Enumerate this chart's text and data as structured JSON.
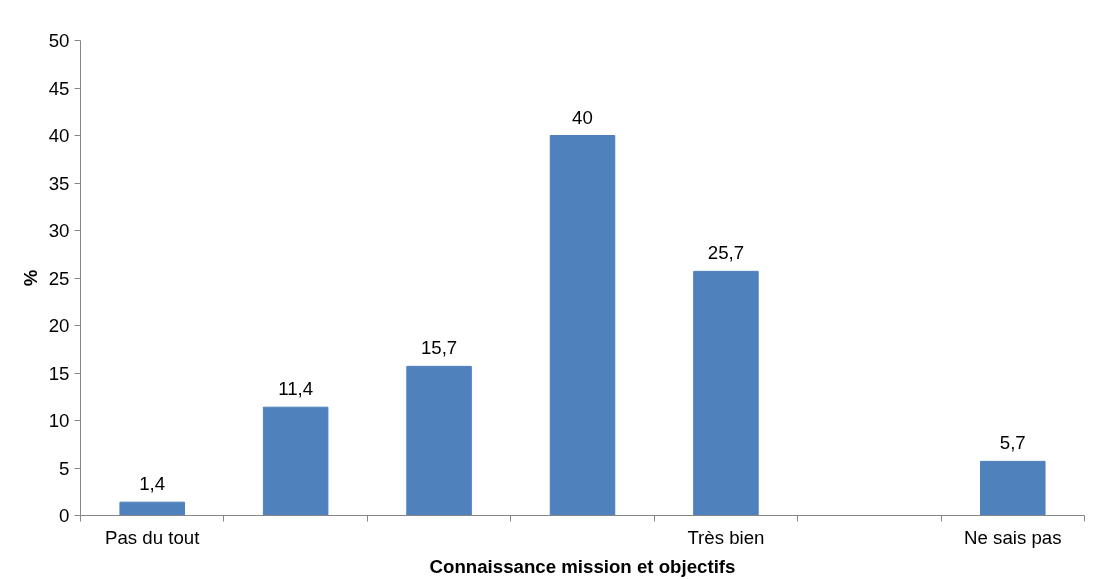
{
  "chart_data": {
    "type": "bar",
    "xlabel": "Connaissance mission et objectifs",
    "ylabel": "%",
    "categories": [
      "Pas du tout",
      null,
      null,
      null,
      "Très bien",
      null,
      "Ne sais pas"
    ],
    "values": [
      1.4,
      11.4,
      15.7,
      40,
      25.7,
      null,
      5.7
    ],
    "value_labels": [
      "1,4",
      "11,4",
      "15,7",
      "40",
      "25,7",
      null,
      "5,7"
    ],
    "color": "#4f81bd",
    "ylim": [
      0,
      50
    ],
    "yticks": [
      0,
      5,
      10,
      15,
      20,
      25,
      30,
      35,
      40,
      45,
      50
    ],
    "grid": false
  }
}
